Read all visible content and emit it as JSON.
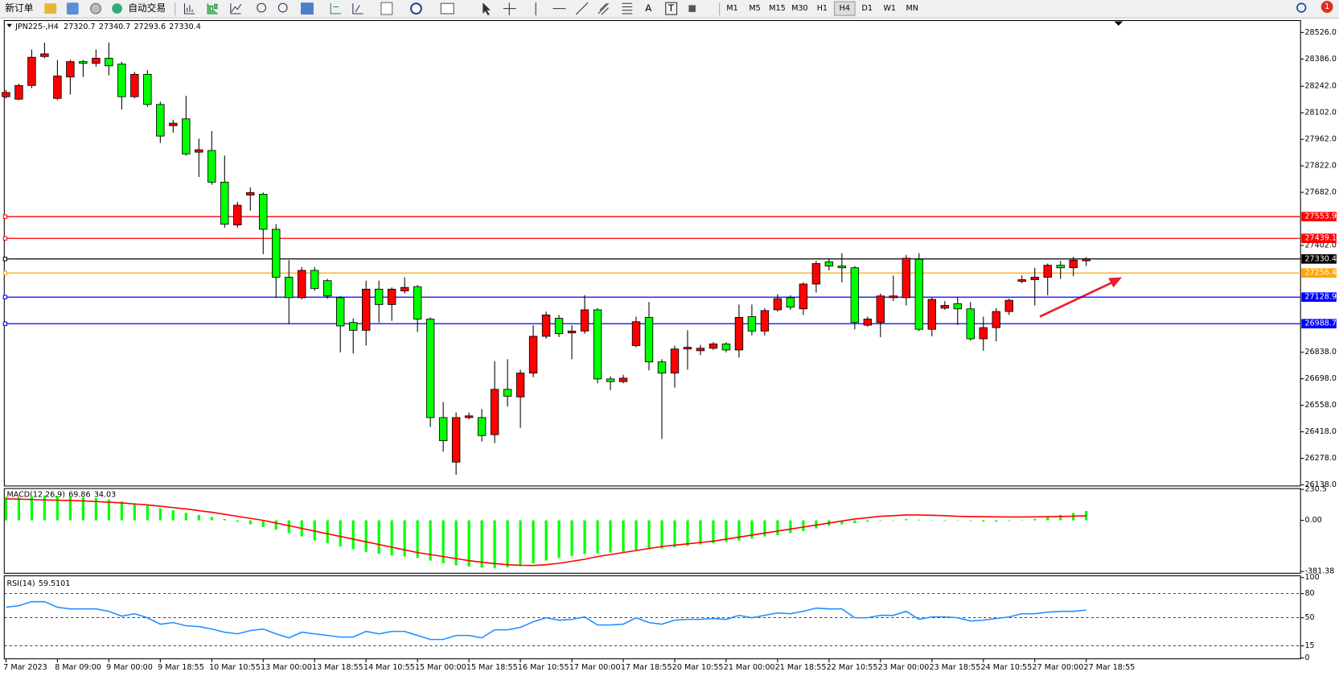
{
  "toolbar": {
    "new_order": "新订单",
    "auto_trading": "自动交易",
    "text_tool": "A",
    "label_tool": "T",
    "timeframes": [
      "M1",
      "M5",
      "M15",
      "M30",
      "H1",
      "H4",
      "D1",
      "W1",
      "MN"
    ],
    "active_timeframe": "H4",
    "notification_count": 1
  },
  "chart_data": [
    {
      "type": "candlestick",
      "title": "JPN225-,H4",
      "up_color": "#ff0000",
      "down_color": "#00ff00",
      "categories": [
        "7 Mar 2023",
        null,
        null,
        null,
        "8 Mar 09:00",
        null,
        null,
        null,
        "9 Mar 00:00",
        null,
        null,
        null,
        "9 Mar 18:55",
        null,
        null,
        null,
        "10 Mar 10:55",
        null,
        null,
        null,
        "13 Mar 00:00",
        null,
        null,
        null,
        "13 Mar 18:55",
        null,
        null,
        null,
        "14 Mar 10:55",
        null,
        null,
        null,
        "15 Mar 00:00",
        null,
        null,
        null,
        "15 Mar 18:55",
        null,
        null,
        null,
        "16 Mar 10:55",
        null,
        null,
        null,
        "17 Mar 00:00",
        null,
        null,
        null,
        "17 Mar 18:55",
        null,
        null,
        null,
        "20 Mar 10:55",
        null,
        null,
        null,
        "21 Mar 00:00",
        null,
        null,
        null,
        "21 Mar 18:55",
        null,
        null,
        null,
        "22 Mar 10:55",
        null,
        null,
        null,
        "23 Mar 00:00",
        null,
        null,
        null,
        "23 Mar 18:55",
        null,
        null,
        null,
        "24 Mar 10:55",
        null,
        null,
        null,
        "27 Mar 00:00",
        null,
        null,
        null,
        "27 Mar 18:55"
      ],
      "open": [
        28187,
        28174,
        28246,
        28399,
        28178,
        28291,
        28372,
        28363,
        28390,
        28359,
        28187,
        28305,
        28146,
        28034,
        28070,
        27894,
        27903,
        27736,
        27510,
        27668,
        27672,
        27487,
        27234,
        27126,
        27270,
        27216,
        27126,
        26995,
        26954,
        27171,
        27090,
        27162,
        27184,
        27013,
        26493,
        26258,
        26493,
        26493,
        26403,
        26642,
        26602,
        26728,
        26922,
        27017,
        26940,
        26950,
        27062,
        26697,
        26683,
        26873,
        27022,
        26787,
        26728,
        26855,
        26846,
        26859,
        26882,
        26850,
        27026,
        26950,
        27062,
        27126,
        27067,
        27198,
        27315,
        27293,
        27284,
        26981,
        26995,
        27126,
        27126,
        27329,
        26959,
        27071,
        27094,
        27067,
        26909,
        26968,
        27053,
        27212,
        27221,
        27234,
        27297,
        27284,
        27320.7
      ],
      "high": [
        28223,
        28255,
        28436,
        28472,
        28381,
        28381,
        28381,
        28436,
        28472,
        28372,
        28318,
        28327,
        28160,
        28065,
        28192,
        27966,
        28006,
        27876,
        27632,
        27708,
        27681,
        27514,
        27324,
        27288,
        27288,
        27225,
        27135,
        27017,
        27216,
        27216,
        27180,
        27234,
        27193,
        27022,
        26575,
        26520,
        26520,
        26538,
        26791,
        26801,
        26746,
        26981,
        27053,
        27035,
        26981,
        27139,
        27071,
        26710,
        26719,
        27026,
        27103,
        26801,
        26873,
        26954,
        26877,
        26891,
        26891,
        27090,
        27090,
        27071,
        27144,
        27139,
        27207,
        27320,
        27334,
        27361,
        27293,
        27026,
        27148,
        27243,
        27352,
        27361,
        27126,
        27108,
        27130,
        27103,
        27026,
        27071,
        27121,
        27243,
        27284,
        27306,
        27320,
        27342,
        27340.7
      ],
      "low": [
        28178,
        28169,
        28232,
        28390,
        28169,
        28199,
        28291,
        28345,
        28300,
        28119,
        28178,
        28133,
        27943,
        27997,
        27876,
        27763,
        27722,
        27496,
        27496,
        27586,
        27356,
        27126,
        26990,
        27117,
        27162,
        27121,
        26837,
        26832,
        26873,
        26995,
        27004,
        27148,
        26945,
        26444,
        26313,
        26191,
        26484,
        26367,
        26358,
        26552,
        26439,
        26706,
        26909,
        26918,
        26801,
        26936,
        26674,
        26638,
        26674,
        26864,
        26742,
        26380,
        26651,
        26746,
        26823,
        26850,
        26837,
        26810,
        26927,
        26927,
        27053,
        27062,
        27035,
        27153,
        27270,
        27207,
        26959,
        26972,
        26918,
        27108,
        27085,
        26950,
        26922,
        27062,
        26981,
        26900,
        26846,
        26895,
        27035,
        27202,
        27085,
        27139,
        27225,
        27239,
        27293.6
      ],
      "close": [
        28209,
        28246,
        28395,
        28413,
        28296,
        28372,
        28363,
        28390,
        28350,
        28187,
        28305,
        28146,
        27979,
        28047,
        27885,
        27907,
        27736,
        27514,
        27614,
        27681,
        27487,
        27234,
        27126,
        27270,
        27175,
        27135,
        26977,
        26954,
        27171,
        27090,
        27171,
        27180,
        27013,
        26493,
        26371,
        26493,
        26502,
        26398,
        26642,
        26606,
        26728,
        26922,
        27035,
        26936,
        26950,
        27062,
        26697,
        26683,
        26701,
        26999,
        26787,
        26728,
        26855,
        26864,
        26859,
        26882,
        26850,
        27022,
        26950,
        27058,
        27121,
        27076,
        27198,
        27306,
        27293,
        27284,
        26995,
        27013,
        27135,
        27135,
        27334,
        26959,
        27117,
        27085,
        27067,
        26909,
        26968,
        27053,
        27112,
        27221,
        27234,
        27297,
        27284,
        27324,
        27330.4
      ],
      "ylim": [
        26132,
        28589
      ],
      "yticks": [
        {
          "value": 28526,
          "label": "28526.0"
        },
        {
          "value": 28386,
          "label": "28386.0"
        },
        {
          "value": 28242,
          "label": "28242.0"
        },
        {
          "value": 28102,
          "label": "28102.0"
        },
        {
          "value": 27962,
          "label": "27962.0"
        },
        {
          "value": 27822,
          "label": "27822.0"
        },
        {
          "value": 27682,
          "label": "27682.0"
        },
        {
          "value": 27402,
          "label": "27402.0"
        },
        {
          "value": 26838,
          "label": "26838.0"
        },
        {
          "value": 26698,
          "label": "26698.0"
        },
        {
          "value": 26558,
          "label": "26558.0"
        },
        {
          "value": 26418,
          "label": "26418.0"
        },
        {
          "value": 26278,
          "label": "26278.0"
        },
        {
          "value": 26138,
          "label": "26138.0"
        }
      ],
      "levels": [
        {
          "value": 27553.9,
          "color": "#ff0000"
        },
        {
          "value": 27439.1,
          "color": "#ff0000"
        },
        {
          "value": 27330.4,
          "color": "#000000"
        },
        {
          "value": 27256.4,
          "color": "#ffa500"
        },
        {
          "value": 27128.9,
          "color": "#0000ff"
        },
        {
          "value": 26988.7,
          "color": "#0000ff"
        }
      ]
    },
    {
      "type": "macd",
      "title": "MACD(12,26,9)",
      "color": "#00ff00",
      "signal_color": "#ff0000",
      "values": [
        175,
        172,
        180,
        185,
        182,
        178,
        170,
        165,
        155,
        140,
        120,
        110,
        90,
        75,
        55,
        40,
        25,
        10,
        -10,
        -30,
        -50,
        -70,
        -95,
        -120,
        -150,
        -170,
        -195,
        -215,
        -235,
        -250,
        -262,
        -270,
        -280,
        -300,
        -320,
        -335,
        -345,
        -352,
        -355,
        -350,
        -340,
        -320,
        -300,
        -280,
        -265,
        -250,
        -245,
        -240,
        -235,
        -225,
        -215,
        -210,
        -200,
        -190,
        -180,
        -170,
        -160,
        -150,
        -135,
        -120,
        -110,
        -95,
        -80,
        -60,
        -40,
        -30,
        -20,
        -10,
        -5,
        0,
        10,
        5,
        0,
        -5,
        0,
        -5,
        -10,
        -10,
        -5,
        0,
        10,
        25,
        40,
        55,
        69.86
      ],
      "signal": [
        160,
        158,
        155,
        152,
        150,
        148,
        145,
        140,
        135,
        130,
        122,
        115,
        105,
        95,
        85,
        72,
        60,
        45,
        30,
        15,
        0,
        -20,
        -40,
        -60,
        -80,
        -100,
        -120,
        -140,
        -160,
        -180,
        -200,
        -220,
        -240,
        -255,
        -270,
        -285,
        -300,
        -312,
        -322,
        -330,
        -335,
        -336,
        -330,
        -320,
        -305,
        -290,
        -270,
        -255,
        -240,
        -225,
        -210,
        -195,
        -185,
        -175,
        -165,
        -155,
        -140,
        -125,
        -110,
        -95,
        -80,
        -65,
        -50,
        -35,
        -20,
        -5,
        10,
        20,
        30,
        35,
        40,
        40,
        38,
        35,
        30,
        28,
        27,
        26,
        25,
        25,
        26,
        27,
        29,
        31,
        34.03
      ],
      "ylim": [
        -381.38,
        230.5
      ],
      "yticks": [
        230.5,
        {
          "value": 0,
          "label": "0.00"
        },
        -381.38
      ]
    },
    {
      "type": "rsi",
      "title": "RSI(14)",
      "color": "#1e90ff",
      "values": [
        63,
        65,
        70,
        70,
        63,
        61,
        61,
        61,
        58,
        52,
        55,
        50,
        42,
        44,
        40,
        39,
        36,
        32,
        30,
        34,
        36,
        30,
        25,
        32,
        30,
        28,
        26,
        26,
        33,
        30,
        33,
        33,
        28,
        23,
        23,
        28,
        28,
        25,
        35,
        35,
        38,
        45,
        50,
        47,
        48,
        51,
        41,
        41,
        42,
        50,
        44,
        42,
        47,
        48,
        48,
        49,
        48,
        53,
        50,
        53,
        56,
        55,
        58,
        62,
        61,
        61,
        50,
        50,
        53,
        53,
        58,
        48,
        51,
        51,
        50,
        46,
        47,
        49,
        51,
        55,
        55,
        57,
        58,
        58,
        59.5101
      ],
      "ylim": [
        0,
        100
      ],
      "yticks": [
        100,
        80,
        50,
        15,
        0
      ],
      "levels": [
        80,
        50,
        15
      ]
    }
  ]
}
